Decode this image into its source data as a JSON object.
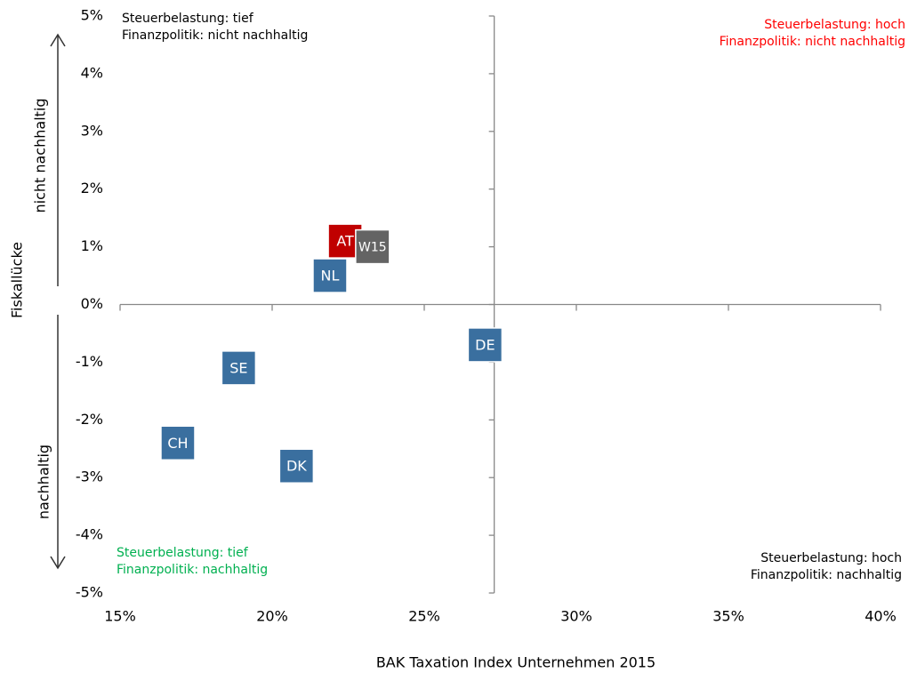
{
  "chart_data": {
    "type": "scatter",
    "x_label": "BAK Taxation Index Unternehmen 2015",
    "y_label": "Fiskallücke",
    "y_upper_label": "nicht nachhaltig",
    "y_lower_label": "nachhaltig",
    "annotations": [
      {
        "lines": [
          "Steuerbelastung: tief",
          "Finanzpolitik: nicht nachhaltig"
        ],
        "color": "#000000"
      },
      {
        "lines": [
          "Steuerbelastung: hoch",
          "Finanzpolitik: nicht nachhaltig"
        ],
        "color": "#ff0000"
      },
      {
        "lines": [
          "Steuerbelastung: tief",
          "Finanzpolitik: nachhaltig"
        ],
        "color": "#00b050"
      },
      {
        "lines": [
          "Steuerbelastung: hoch",
          "Finanzpolitik: nachhaltig"
        ],
        "color": "#000000"
      }
    ],
    "series": [
      {
        "name": "AT",
        "color": "#c00000",
        "x": [
          22.4
        ],
        "values": [
          1.1
        ]
      },
      {
        "name": "W15",
        "color": "#646464",
        "x": [
          23.3
        ],
        "values": [
          1.0
        ]
      },
      {
        "name": "NL",
        "color": "#3a6f9f",
        "x": [
          21.9
        ],
        "values": [
          0.5
        ]
      },
      {
        "name": "DE",
        "color": "#3a6f9f",
        "x": [
          27.0
        ],
        "values": [
          -0.7
        ]
      },
      {
        "name": "SE",
        "color": "#3a6f9f",
        "x": [
          18.9
        ],
        "values": [
          -1.1
        ]
      },
      {
        "name": "CH",
        "color": "#3a6f9f",
        "x": [
          16.9
        ],
        "values": [
          -2.4
        ]
      },
      {
        "name": "DK",
        "color": "#3a6f9f",
        "x": [
          20.8
        ],
        "values": [
          -2.8
        ]
      }
    ],
    "xlim": [
      15,
      40
    ],
    "ylim": [
      -5,
      5
    ],
    "y_axis_crossing": 27.3,
    "xticks": [
      {
        "value": 15,
        "label": "15%"
      },
      {
        "value": 20,
        "label": "20%"
      },
      {
        "value": 25,
        "label": "25%"
      },
      {
        "value": 30,
        "label": "30%"
      },
      {
        "value": 35,
        "label": "35%"
      },
      {
        "value": 40,
        "label": "40%"
      }
    ],
    "yticks": [
      {
        "value": -5,
        "label": "-5%"
      },
      {
        "value": -4,
        "label": "-4%"
      },
      {
        "value": -3,
        "label": "-3%"
      },
      {
        "value": -2,
        "label": "-2%"
      },
      {
        "value": -1,
        "label": "-1%"
      },
      {
        "value": 0,
        "label": "0%"
      },
      {
        "value": 1,
        "label": "1%"
      },
      {
        "value": 2,
        "label": "2%"
      },
      {
        "value": 3,
        "label": "3%"
      },
      {
        "value": 4,
        "label": "4%"
      },
      {
        "value": 5,
        "label": "5%"
      }
    ]
  }
}
